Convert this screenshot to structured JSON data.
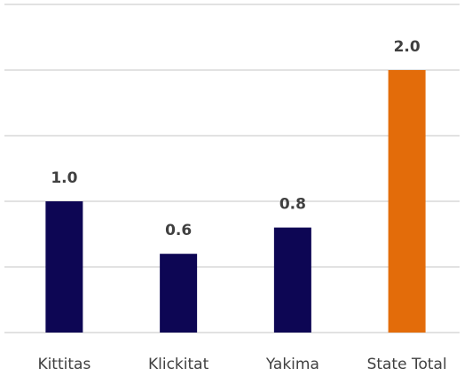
{
  "chart_data": {
    "type": "bar",
    "categories": [
      "Kittitas",
      "Klickitat",
      "Yakima",
      "State Total"
    ],
    "values": [
      1.0,
      0.6,
      0.8,
      2.0
    ],
    "value_labels": [
      "1.0",
      "0.6",
      "0.8",
      "2.0"
    ],
    "colors": [
      "#0d0654",
      "#0d0654",
      "#0d0654",
      "#e36c0a"
    ],
    "ylim": [
      0,
      2.5
    ],
    "yticks": [
      0,
      0.5,
      1,
      1.5,
      2,
      2.5
    ],
    "grid": true
  }
}
